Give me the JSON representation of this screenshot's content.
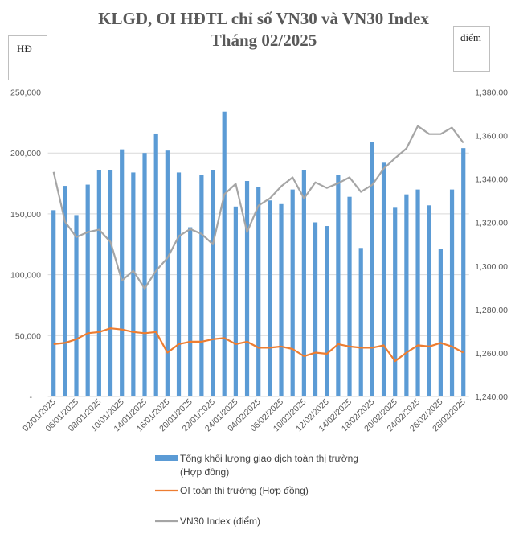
{
  "chart_data": {
    "type": "bar+line",
    "title": "KLGD, OI HĐTL chỉ số VN30 và VN30 Index",
    "subtitle": "Tháng 02/2025",
    "y_left_unit": "HĐ",
    "y_right_unit": "điểm",
    "x_tick_labels": [
      "02/01/2025",
      "06/01/2025",
      "08/01/2025",
      "10/01/2025",
      "14/01/2025",
      "16/01/2025",
      "20/01/2025",
      "22/01/2025",
      "24/01/2025",
      "04/02/2025",
      "06/02/2025",
      "10/02/2025",
      "12/02/2025",
      "14/02/2025",
      "18/02/2025",
      "20/02/2025",
      "24/02/2025",
      "26/02/2025",
      "28/02/2025"
    ],
    "y_left": {
      "ylim": [
        0,
        250000
      ],
      "tick_labels": [
        "-",
        "50,000",
        "100,000",
        "150,000",
        "200,000",
        "250,000"
      ]
    },
    "y_right": {
      "ylim": [
        1240,
        1380
      ],
      "tick_labels": [
        "1,240.00",
        "1,260.00",
        "1,280.00",
        "1,300.00",
        "1,320.00",
        "1,340.00",
        "1,360.00",
        "1,380.00"
      ]
    },
    "grid": true,
    "legend_position": "bottom",
    "series": [
      {
        "name": "Tổng khối lượng giao dịch toàn thị trường (Hợp đồng)",
        "type": "bar",
        "axis": "left",
        "color": "#5b9bd5",
        "values": [
          153000,
          173000,
          149000,
          174000,
          186000,
          186000,
          203000,
          184000,
          200000,
          216000,
          202000,
          184000,
          139000,
          182000,
          186000,
          234000,
          156000,
          177000,
          172000,
          161000,
          158000,
          170000,
          186000,
          143000,
          140000,
          182000,
          164000,
          122000,
          209000,
          192000,
          155000,
          166000,
          170000,
          157000,
          121000,
          170000,
          204000
        ]
      },
      {
        "name": "OI toàn thị trường (Hợp đồng)",
        "type": "line",
        "axis": "left",
        "color": "#ed7d31",
        "values": [
          43000,
          44000,
          47000,
          52000,
          53000,
          56000,
          55000,
          53000,
          52000,
          53000,
          36000,
          43000,
          45000,
          45000,
          47000,
          48000,
          43000,
          45000,
          40000,
          40000,
          41000,
          39000,
          33000,
          36000,
          35000,
          43000,
          41000,
          40000,
          40000,
          42000,
          29000,
          36000,
          42000,
          41000,
          44000,
          41000,
          36000
        ]
      },
      {
        "name": "VN30 Index (điểm)",
        "type": "line",
        "axis": "right",
        "color": "#a5a5a5",
        "values": [
          1343.3,
          1320.4,
          1313.3,
          1315.6,
          1316.7,
          1311.1,
          1293.3,
          1297.8,
          1289.6,
          1297.8,
          1303.7,
          1313.7,
          1317.0,
          1314.8,
          1310.0,
          1333.0,
          1337.8,
          1315.6,
          1327.8,
          1331.1,
          1336.7,
          1340.8,
          1331.1,
          1338.5,
          1335.9,
          1338.1,
          1340.8,
          1334.1,
          1337.4,
          1344.8,
          1349.6,
          1354.1,
          1364.4,
          1360.7,
          1360.7,
          1363.7,
          1356.7
        ]
      }
    ]
  }
}
